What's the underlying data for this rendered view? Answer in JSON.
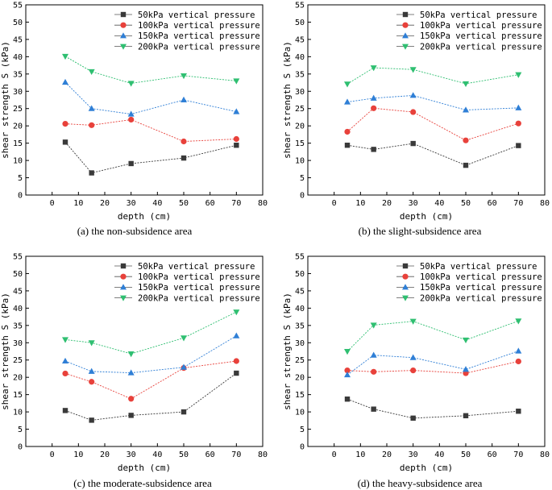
{
  "chart_data": [
    {
      "type": "line",
      "caption": "(a) the non-subsidence area",
      "xlabel": "depth (cm)",
      "ylabel": "shear strength S (kPa)",
      "xlim": [
        -10,
        80
      ],
      "ylim": [
        0,
        55
      ],
      "xticks": [
        0,
        10,
        20,
        30,
        40,
        50,
        60,
        70,
        80
      ],
      "yticks": [
        0,
        5,
        10,
        15,
        20,
        25,
        30,
        35,
        40,
        45,
        50,
        55
      ],
      "x": [
        5,
        15,
        30,
        50,
        70
      ],
      "series": [
        {
          "name": "50kPa vertical pressure",
          "marker": "square",
          "color": "#3a3a3a",
          "values": [
            15.3,
            6.4,
            9.1,
            10.7,
            14.4
          ]
        },
        {
          "name": "100kPa vertical pressure",
          "marker": "circle",
          "color": "#e8413b",
          "values": [
            20.6,
            20.2,
            21.8,
            15.5,
            16.2
          ]
        },
        {
          "name": "150kPa vertical pressure",
          "marker": "triangle-up",
          "color": "#2f7fd6",
          "values": [
            32.6,
            25.0,
            23.4,
            27.5,
            24.1
          ]
        },
        {
          "name": "200kPa vertical pressure",
          "marker": "triangle-down",
          "color": "#2fbf71",
          "values": [
            40.1,
            35.7,
            32.3,
            34.5,
            33.0
          ]
        }
      ]
    },
    {
      "type": "line",
      "caption": "(b) the slight-subsidence area",
      "xlabel": "depth (cm)",
      "ylabel": "shear strength S (kPa)",
      "xlim": [
        -10,
        80
      ],
      "ylim": [
        0,
        55
      ],
      "xticks": [
        0,
        10,
        20,
        30,
        40,
        50,
        60,
        70,
        80
      ],
      "yticks": [
        0,
        5,
        10,
        15,
        20,
        25,
        30,
        35,
        40,
        45,
        50,
        55
      ],
      "x": [
        5,
        15,
        30,
        50,
        70
      ],
      "series": [
        {
          "name": "50kPa vertical pressure",
          "marker": "square",
          "color": "#3a3a3a",
          "values": [
            14.4,
            13.2,
            14.9,
            8.6,
            14.3
          ]
        },
        {
          "name": "100kPa vertical pressure",
          "marker": "circle",
          "color": "#e8413b",
          "values": [
            18.3,
            25.1,
            24.0,
            15.8,
            20.7
          ]
        },
        {
          "name": "150kPa vertical pressure",
          "marker": "triangle-up",
          "color": "#2f7fd6",
          "values": [
            26.9,
            28.0,
            28.8,
            24.6,
            25.2
          ]
        },
        {
          "name": "200kPa vertical pressure",
          "marker": "triangle-down",
          "color": "#2fbf71",
          "values": [
            32.1,
            36.8,
            36.3,
            32.2,
            34.8
          ]
        }
      ]
    },
    {
      "type": "line",
      "caption": "(c) the moderate-subsidence area",
      "xlabel": "depth (cm)",
      "ylabel": "shear strength S (kPa)",
      "xlim": [
        -10,
        80
      ],
      "ylim": [
        0,
        55
      ],
      "xticks": [
        0,
        10,
        20,
        30,
        40,
        50,
        60,
        70,
        80
      ],
      "yticks": [
        0,
        5,
        10,
        15,
        20,
        25,
        30,
        35,
        40,
        45,
        50,
        55
      ],
      "x": [
        5,
        15,
        30,
        50,
        70
      ],
      "series": [
        {
          "name": "50kPa vertical pressure",
          "marker": "square",
          "color": "#3a3a3a",
          "values": [
            10.4,
            7.6,
            9.0,
            10.0,
            21.2
          ]
        },
        {
          "name": "100kPa vertical pressure",
          "marker": "circle",
          "color": "#e8413b",
          "values": [
            21.1,
            18.7,
            13.8,
            22.7,
            24.7
          ]
        },
        {
          "name": "150kPa vertical pressure",
          "marker": "triangle-up",
          "color": "#2f7fd6",
          "values": [
            24.7,
            21.7,
            21.3,
            22.9,
            32.0
          ]
        },
        {
          "name": "200kPa vertical pressure",
          "marker": "triangle-down",
          "color": "#2fbf71",
          "values": [
            30.9,
            30.0,
            26.8,
            31.4,
            38.9
          ]
        }
      ]
    },
    {
      "type": "line",
      "caption": "(d) the heavy-subsidence area",
      "xlabel": "depth (cm)",
      "ylabel": "shear strength S (kPa)",
      "xlim": [
        -10,
        80
      ],
      "ylim": [
        0,
        55
      ],
      "xticks": [
        0,
        10,
        20,
        30,
        40,
        50,
        60,
        70,
        80
      ],
      "yticks": [
        0,
        5,
        10,
        15,
        20,
        25,
        30,
        35,
        40,
        45,
        50,
        55
      ],
      "x": [
        5,
        15,
        30,
        50,
        70
      ],
      "series": [
        {
          "name": "50kPa vertical pressure",
          "marker": "square",
          "color": "#3a3a3a",
          "values": [
            13.7,
            10.8,
            8.2,
            8.9,
            10.2
          ]
        },
        {
          "name": "100kPa vertical pressure",
          "marker": "circle",
          "color": "#e8413b",
          "values": [
            22.0,
            21.6,
            22.0,
            21.2,
            24.6
          ]
        },
        {
          "name": "150kPa vertical pressure",
          "marker": "triangle-up",
          "color": "#2f7fd6",
          "values": [
            20.7,
            26.4,
            25.7,
            22.3,
            27.6
          ]
        },
        {
          "name": "200kPa vertical pressure",
          "marker": "triangle-down",
          "color": "#2fbf71",
          "values": [
            27.5,
            35.1,
            36.2,
            30.8,
            36.3
          ]
        }
      ]
    }
  ]
}
